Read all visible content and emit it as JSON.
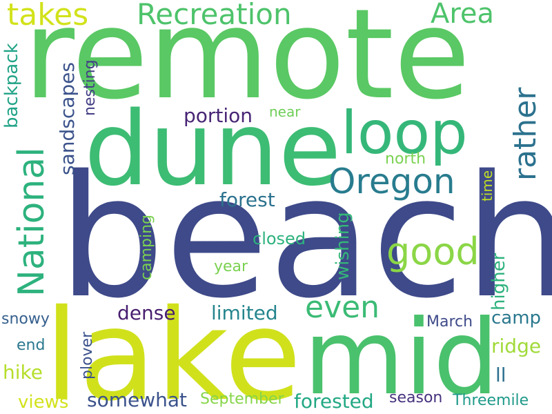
{
  "background_color": "#ffffff",
  "palette": {
    "dark_blue": "#3f4788",
    "purple": "#482475",
    "teal": "#26828e",
    "blue_teal": "#31688e",
    "green_teal": "#1f9e89",
    "green": "#35b779",
    "light_green": "#6ece58",
    "lime": "#b5de2b",
    "yellow": "#d2e21b"
  },
  "words": [
    {
      "key": "remote",
      "text": "remote",
      "color": "#5ac864"
    },
    {
      "key": "beach",
      "text": "beach",
      "color": "#3e4a89"
    },
    {
      "key": "dune",
      "text": "dune",
      "color": "#3dbc74"
    },
    {
      "key": "lake",
      "text": "lake",
      "color": "#d0e11c"
    },
    {
      "key": "mid",
      "text": "mid",
      "color": "#4ac16d"
    },
    {
      "key": "loop",
      "text": "loop",
      "color": "#35b779"
    },
    {
      "key": "takes",
      "text": "takes",
      "color": "#d2e21b"
    },
    {
      "key": "recreation",
      "text": "Recreation",
      "color": "#4ec36b"
    },
    {
      "key": "area",
      "text": "Area",
      "color": "#4ec36b"
    },
    {
      "key": "national",
      "text": "National",
      "color": "#2db27d"
    },
    {
      "key": "oregon",
      "text": "Oregon",
      "color": "#287c8e"
    },
    {
      "key": "rather",
      "text": "rather",
      "color": "#2c728e"
    },
    {
      "key": "good",
      "text": "good",
      "color": "#8bd646"
    },
    {
      "key": "even",
      "text": "even",
      "color": "#3bbb75"
    },
    {
      "key": "portion",
      "text": "portion",
      "color": "#482575"
    },
    {
      "key": "near",
      "text": "near",
      "color": "#6ece58"
    },
    {
      "key": "forest",
      "text": "forest",
      "color": "#2c728e"
    },
    {
      "key": "north",
      "text": "north",
      "color": "#7ad151"
    },
    {
      "key": "time",
      "text": "time",
      "color": "#c2df23"
    },
    {
      "key": "backpack",
      "text": "backpack",
      "color": "#20a386"
    },
    {
      "key": "sandscapes",
      "text": "sandscapes",
      "color": "#3b528b"
    },
    {
      "key": "nesting",
      "text": "nesting",
      "color": "#433e85"
    },
    {
      "key": "camping",
      "text": "camping",
      "color": "#7ad151"
    },
    {
      "key": "wishing",
      "text": "wishing",
      "color": "#35b779"
    },
    {
      "key": "closed",
      "text": "closed",
      "color": "#2db27d"
    },
    {
      "key": "year",
      "text": "year",
      "color": "#7ad151"
    },
    {
      "key": "higher",
      "text": "higher",
      "color": "#2db27d"
    },
    {
      "key": "dense",
      "text": "dense",
      "color": "#481f70"
    },
    {
      "key": "limited",
      "text": "limited",
      "color": "#25858e"
    },
    {
      "key": "camp",
      "text": "camp",
      "color": "#2a788e"
    },
    {
      "key": "snowy",
      "text": "snowy",
      "color": "#355f8d"
    },
    {
      "key": "march",
      "text": "March",
      "color": "#3e4a89"
    },
    {
      "key": "ridge",
      "text": "ridge",
      "color": "#a0da39"
    },
    {
      "key": "end",
      "text": "end",
      "color": "#2a788e"
    },
    {
      "key": "plover",
      "text": "plover",
      "color": "#3b528b"
    },
    {
      "key": "hike",
      "text": "hike",
      "color": "#b5de2b"
    },
    {
      "key": "ll",
      "text": "ll",
      "color": "#2d708e"
    },
    {
      "key": "views",
      "text": "views",
      "color": "#d2e21b"
    },
    {
      "key": "somewhat",
      "text": "somewhat",
      "color": "#3b528b"
    },
    {
      "key": "september",
      "text": "September",
      "color": "#86d549"
    },
    {
      "key": "forested",
      "text": "forested",
      "color": "#22a884"
    },
    {
      "key": "season",
      "text": "season",
      "color": "#46327e"
    },
    {
      "key": "threemile",
      "text": "Threemile",
      "color": "#1f9a8a"
    }
  ]
}
